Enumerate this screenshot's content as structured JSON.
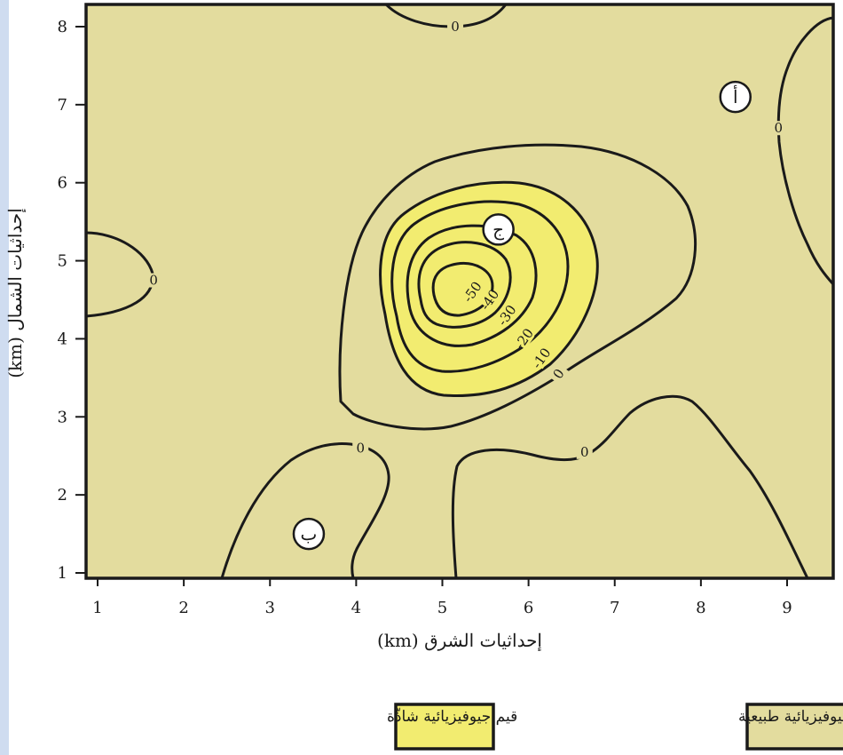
{
  "chart_data": {
    "type": "contour",
    "xlabel": "إحداثيات الشرق (km)",
    "ylabel": "إحداثيات الشمال (km)",
    "xlim": [
      0.9,
      9.5
    ],
    "ylim": [
      0.95,
      8.25
    ],
    "x_ticks": [
      1,
      2,
      3,
      4,
      5,
      6,
      7,
      8,
      9
    ],
    "y_ticks": [
      1,
      2,
      3,
      4,
      5,
      6,
      7,
      8
    ],
    "grid": false,
    "contour_levels": [
      0,
      -10,
      -20,
      -30,
      -40,
      -50
    ],
    "contour_labels": [
      {
        "text": "0",
        "x": 5.15,
        "y": 8.0
      },
      {
        "text": "0",
        "x": 8.9,
        "y": 6.7
      },
      {
        "text": "0",
        "x": 1.65,
        "y": 4.75
      },
      {
        "text": "0",
        "x": 4.05,
        "y": 2.6
      },
      {
        "text": "0",
        "x": 6.65,
        "y": 2.55
      },
      {
        "text": "0",
        "x": 6.35,
        "y": 3.55
      },
      {
        "text": "-10",
        "x": 6.15,
        "y": 3.75
      },
      {
        "text": "-20",
        "x": 5.95,
        "y": 4.0
      },
      {
        "text": "-30",
        "x": 5.75,
        "y": 4.3
      },
      {
        "text": "-40",
        "x": 5.55,
        "y": 4.5
      },
      {
        "text": "-50",
        "x": 5.35,
        "y": 4.6
      }
    ],
    "point_markers": [
      {
        "label": "أ",
        "x": 8.4,
        "y": 7.1
      },
      {
        "label": "ب",
        "x": 3.45,
        "y": 1.5
      },
      {
        "label": "ج",
        "x": 5.65,
        "y": 5.4
      }
    ],
    "legend": [
      {
        "label": "قيم جيوفيزيائية طبيعية",
        "color": "#e3dc9e"
      },
      {
        "label": "قيم جيوفيزيائية شاذّة",
        "color": "#f2ec70"
      }
    ],
    "legend_position": "bottom",
    "colors": {
      "background_field": "#e3dc9e",
      "anomaly_field": "#f2ec70",
      "line": "#1a1a1a"
    }
  }
}
